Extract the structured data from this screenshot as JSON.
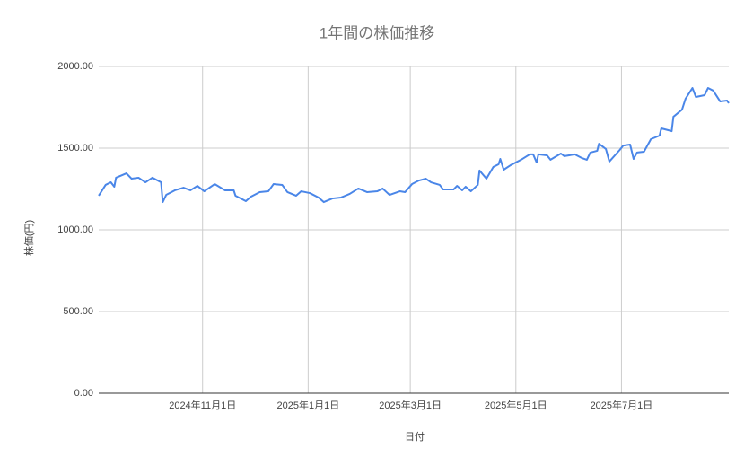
{
  "chart_data": {
    "type": "line",
    "title": "1年間の株価推移",
    "x_label": "日付",
    "y_label": "株価(円)",
    "x": [
      "2024-09-02",
      "2024-09-06",
      "2024-09-09",
      "2024-09-11",
      "2024-09-12",
      "2024-09-18",
      "2024-09-21",
      "2024-09-25",
      "2024-09-29",
      "2024-10-03",
      "2024-10-08",
      "2024-10-09",
      "2024-10-11",
      "2024-10-16",
      "2024-10-21",
      "2024-10-25",
      "2024-10-29",
      "2024-11-02",
      "2024-11-08",
      "2024-11-14",
      "2024-11-19",
      "2024-11-20",
      "2024-11-26",
      "2024-11-29",
      "2024-12-04",
      "2024-12-09",
      "2024-12-12",
      "2024-12-17",
      "2024-12-20",
      "2024-12-25",
      "2024-12-28",
      "2025-01-02",
      "2025-01-07",
      "2025-01-10",
      "2025-01-15",
      "2025-01-20",
      "2025-01-25",
      "2025-01-30",
      "2025-02-04",
      "2025-02-10",
      "2025-02-13",
      "2025-02-17",
      "2025-02-23",
      "2025-02-26",
      "2025-03-02",
      "2025-03-06",
      "2025-03-10",
      "2025-03-13",
      "2025-03-18",
      "2025-03-20",
      "2025-03-26",
      "2025-03-28",
      "2025-03-31",
      "2025-04-02",
      "2025-04-05",
      "2025-04-09",
      "2025-04-10",
      "2025-04-14",
      "2025-04-18",
      "2025-04-21",
      "2025-04-22",
      "2025-04-24",
      "2025-04-28",
      "2025-05-04",
      "2025-05-09",
      "2025-05-11",
      "2025-05-13",
      "2025-05-14",
      "2025-05-19",
      "2025-05-21",
      "2025-05-27",
      "2025-05-29",
      "2025-06-04",
      "2025-06-08",
      "2025-06-11",
      "2025-06-13",
      "2025-06-17",
      "2025-06-18",
      "2025-06-22",
      "2025-06-24",
      "2025-06-30",
      "2025-07-02",
      "2025-07-06",
      "2025-07-08",
      "2025-07-10",
      "2025-07-14",
      "2025-07-18",
      "2025-07-23",
      "2025-07-24",
      "2025-07-28",
      "2025-07-30",
      "2025-07-31",
      "2025-08-05",
      "2025-08-07",
      "2025-08-11",
      "2025-08-13",
      "2025-08-18",
      "2025-08-20",
      "2025-08-23",
      "2025-08-27",
      "2025-08-31",
      "2025-09-01"
    ],
    "series": [
      {
        "name": "株価",
        "color": "#4a86e8",
        "values": [
          1209,
          1275,
          1291,
          1264,
          1319,
          1346,
          1313,
          1319,
          1291,
          1319,
          1291,
          1170,
          1214,
          1242,
          1258,
          1242,
          1269,
          1236,
          1280,
          1242,
          1242,
          1209,
          1176,
          1203,
          1231,
          1236,
          1280,
          1275,
          1231,
          1209,
          1236,
          1225,
          1198,
          1170,
          1192,
          1198,
          1220,
          1253,
          1231,
          1236,
          1253,
          1214,
          1236,
          1231,
          1280,
          1302,
          1313,
          1291,
          1275,
          1247,
          1247,
          1269,
          1242,
          1264,
          1236,
          1275,
          1363,
          1313,
          1385,
          1401,
          1434,
          1368,
          1396,
          1429,
          1462,
          1462,
          1412,
          1462,
          1456,
          1429,
          1467,
          1451,
          1462,
          1440,
          1429,
          1473,
          1484,
          1527,
          1495,
          1418,
          1489,
          1516,
          1522,
          1434,
          1473,
          1478,
          1555,
          1577,
          1621,
          1610,
          1604,
          1692,
          1736,
          1802,
          1868,
          1813,
          1824,
          1868,
          1852,
          1786,
          1791,
          1775
        ]
      }
    ],
    "xlim": [
      "2024-09-02",
      "2025-09-01"
    ],
    "xticks": [
      {
        "value": "2024-11-01",
        "label": "2024年11月1日"
      },
      {
        "value": "2025-01-01",
        "label": "2025年1月1日"
      },
      {
        "value": "2025-03-01",
        "label": "2025年3月1日"
      },
      {
        "value": "2025-05-01",
        "label": "2025年5月1日"
      },
      {
        "value": "2025-07-01",
        "label": "2025年7月1日"
      }
    ],
    "ylim": [
      0,
      2000
    ],
    "yticks": [
      {
        "value": 0,
        "label": "0.00"
      },
      {
        "value": 500,
        "label": "500.00"
      },
      {
        "value": 1000,
        "label": "1000.00"
      },
      {
        "value": 1500,
        "label": "1500.00"
      },
      {
        "value": 2000,
        "label": "2000.00"
      }
    ],
    "grid": true
  }
}
